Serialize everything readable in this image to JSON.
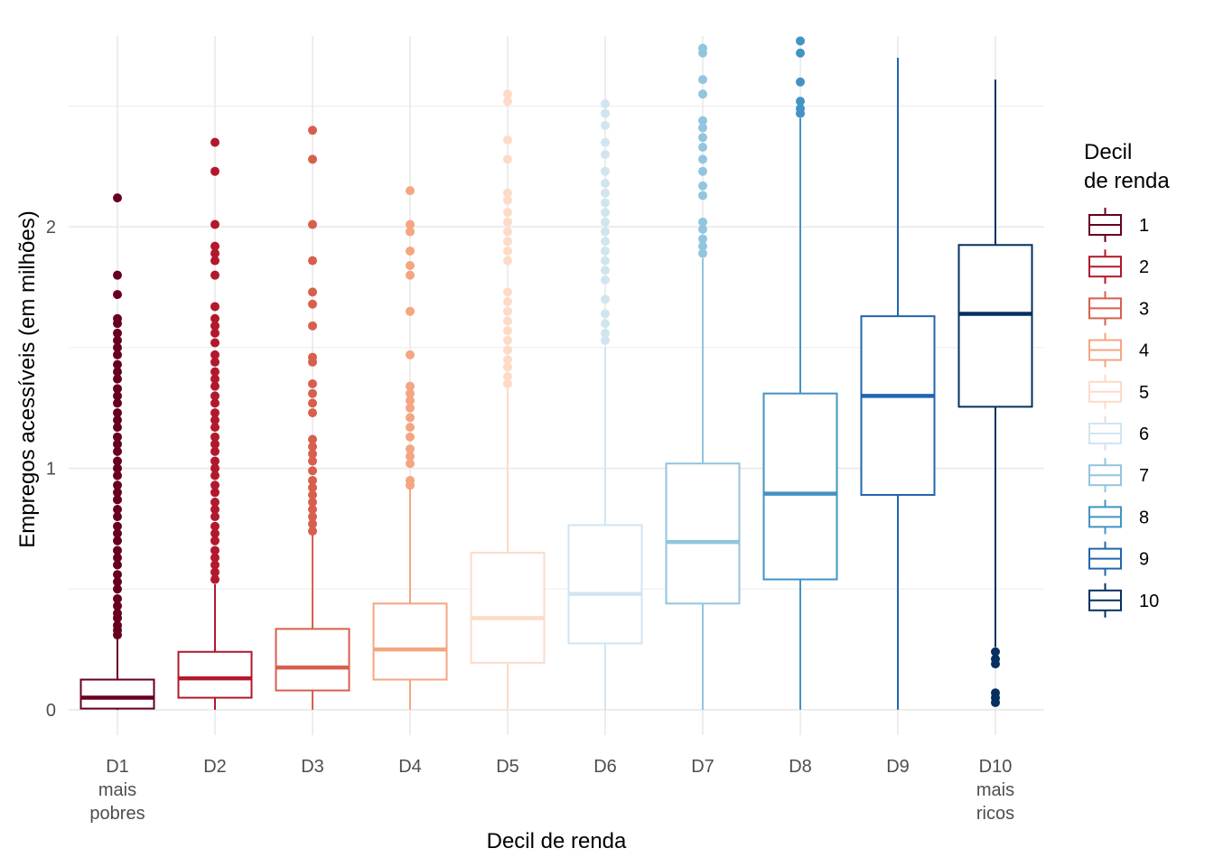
{
  "chart_data": {
    "type": "boxplot",
    "title": "",
    "xlabel": "Decil de renda",
    "ylabel": "Empregos acessíveis (em milhões)",
    "ylim": [
      -0.105,
      2.79
    ],
    "y_ticks": [
      0,
      1,
      2
    ],
    "y_tick_labels": [
      "0",
      "1",
      "2"
    ],
    "y_minor_gridlines": [
      0.5,
      1.5,
      2.5
    ],
    "grid": true,
    "categories": [
      {
        "key": "D1",
        "label_lines": [
          "D1",
          "mais",
          "pobres"
        ]
      },
      {
        "key": "D2",
        "label_lines": [
          "D2"
        ]
      },
      {
        "key": "D3",
        "label_lines": [
          "D3"
        ]
      },
      {
        "key": "D4",
        "label_lines": [
          "D4"
        ]
      },
      {
        "key": "D5",
        "label_lines": [
          "D5"
        ]
      },
      {
        "key": "D6",
        "label_lines": [
          "D6"
        ]
      },
      {
        "key": "D7",
        "label_lines": [
          "D7"
        ]
      },
      {
        "key": "D8",
        "label_lines": [
          "D8"
        ]
      },
      {
        "key": "D9",
        "label_lines": [
          "D9"
        ]
      },
      {
        "key": "D10",
        "label_lines": [
          "D10",
          "mais",
          "ricos"
        ]
      }
    ],
    "series": [
      {
        "name": "1",
        "color": "#67001f",
        "whisker_low": 0.0,
        "q1": 0.005,
        "median": 0.05,
        "q3": 0.125,
        "whisker_high": 0.3,
        "outliers": [
          0.31,
          0.33,
          0.35,
          0.38,
          0.4,
          0.43,
          0.46,
          0.5,
          0.53,
          0.56,
          0.6,
          0.63,
          0.66,
          0.7,
          0.73,
          0.76,
          0.8,
          0.83,
          0.87,
          0.9,
          0.93,
          0.97,
          1.0,
          1.03,
          1.07,
          1.1,
          1.13,
          1.17,
          1.2,
          1.23,
          1.27,
          1.3,
          1.33,
          1.37,
          1.4,
          1.43,
          1.47,
          1.5,
          1.53,
          1.56,
          1.6,
          1.62,
          1.72,
          1.8,
          2.12
        ]
      },
      {
        "name": "2",
        "color": "#b2182b",
        "whisker_low": 0.0,
        "q1": 0.05,
        "median": 0.13,
        "q3": 0.24,
        "whisker_high": 0.52,
        "outliers": [
          0.54,
          0.57,
          0.6,
          0.63,
          0.66,
          0.7,
          0.73,
          0.76,
          0.8,
          0.83,
          0.86,
          0.9,
          0.93,
          0.97,
          1.0,
          1.03,
          1.07,
          1.1,
          1.13,
          1.17,
          1.2,
          1.23,
          1.27,
          1.3,
          1.34,
          1.37,
          1.4,
          1.44,
          1.47,
          1.52,
          1.56,
          1.59,
          1.62,
          1.67,
          1.8,
          1.86,
          1.89,
          1.92,
          2.01,
          2.23,
          2.35
        ]
      },
      {
        "name": "3",
        "color": "#d6604d",
        "whisker_low": 0.0,
        "q1": 0.08,
        "median": 0.175,
        "q3": 0.335,
        "whisker_high": 0.73,
        "outliers": [
          0.74,
          0.77,
          0.8,
          0.83,
          0.86,
          0.89,
          0.92,
          0.95,
          0.99,
          1.03,
          1.06,
          1.09,
          1.12,
          1.23,
          1.27,
          1.31,
          1.35,
          1.44,
          1.46,
          1.59,
          1.68,
          1.73,
          1.86,
          2.01,
          2.28,
          2.4
        ]
      },
      {
        "name": "4",
        "color": "#f4a582",
        "whisker_low": 0.0,
        "q1": 0.125,
        "median": 0.25,
        "q3": 0.44,
        "whisker_high": 0.915,
        "outliers": [
          0.93,
          0.95,
          1.02,
          1.05,
          1.08,
          1.13,
          1.17,
          1.21,
          1.25,
          1.28,
          1.31,
          1.34,
          1.47,
          1.65,
          1.8,
          1.84,
          1.9,
          1.98,
          2.01,
          2.15
        ]
      },
      {
        "name": "5",
        "color": "#fddbc7",
        "whisker_low": 0.0,
        "q1": 0.195,
        "median": 0.38,
        "q3": 0.65,
        "whisker_high": 1.335,
        "outliers": [
          1.35,
          1.38,
          1.42,
          1.45,
          1.49,
          1.53,
          1.57,
          1.61,
          1.65,
          1.69,
          1.73,
          1.86,
          1.9,
          1.94,
          1.98,
          2.02,
          2.06,
          2.11,
          2.14,
          2.28,
          2.36,
          2.52,
          2.55
        ]
      },
      {
        "name": "6",
        "color": "#d1e5f0",
        "whisker_low": 0.0,
        "q1": 0.275,
        "median": 0.48,
        "q3": 0.765,
        "whisker_high": 1.5,
        "outliers": [
          1.53,
          1.56,
          1.6,
          1.64,
          1.7,
          1.78,
          1.82,
          1.86,
          1.9,
          1.94,
          1.98,
          2.02,
          2.06,
          2.1,
          2.14,
          2.18,
          2.23,
          2.3,
          2.35,
          2.42,
          2.47,
          2.51
        ]
      },
      {
        "name": "7",
        "color": "#92c5de",
        "whisker_low": 0.0,
        "q1": 0.44,
        "median": 0.695,
        "q3": 1.02,
        "whisker_high": 1.87,
        "outliers": [
          1.89,
          1.92,
          1.95,
          1.99,
          2.02,
          2.13,
          2.17,
          2.23,
          2.28,
          2.33,
          2.37,
          2.41,
          2.44,
          2.55,
          2.61,
          2.72,
          2.74
        ]
      },
      {
        "name": "8",
        "color": "#4393c3",
        "whisker_low": 0.0,
        "q1": 0.54,
        "median": 0.895,
        "q3": 1.31,
        "whisker_high": 2.45,
        "outliers": [
          2.47,
          2.49,
          2.52,
          2.6,
          2.72,
          2.77
        ]
      },
      {
        "name": "9",
        "color": "#2166ac",
        "whisker_low": 0.0,
        "q1": 0.89,
        "median": 1.3,
        "q3": 1.63,
        "whisker_high": 2.7,
        "outliers": []
      },
      {
        "name": "10",
        "color": "#053061",
        "whisker_low": 0.26,
        "q1": 1.255,
        "median": 1.64,
        "q3": 1.925,
        "whisker_high": 2.61,
        "outliers": [
          0.03,
          0.05,
          0.07,
          0.19,
          0.21,
          0.24
        ]
      }
    ],
    "legend": {
      "title_lines": [
        "Decil",
        "de renda"
      ],
      "position": "right",
      "entries": [
        "1",
        "2",
        "3",
        "4",
        "5",
        "6",
        "7",
        "8",
        "9",
        "10"
      ]
    }
  }
}
